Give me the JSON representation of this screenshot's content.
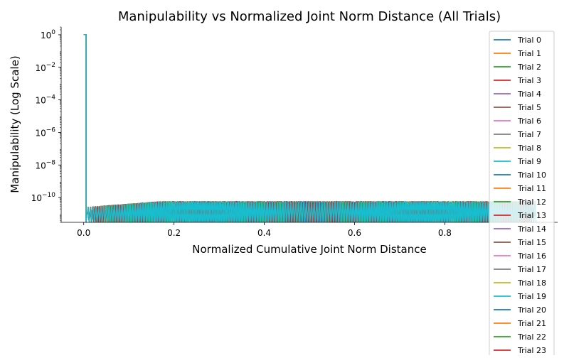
{
  "chart_data": {
    "type": "line",
    "title": "Manipulability vs Normalized Joint Norm Distance (All Trials)",
    "xlabel": "Normalized Cumulative Joint Norm Distance",
    "ylabel": "Manipulability (Log Scale)",
    "xlim": [
      -0.05,
      1.05
    ],
    "ylim": [
      3e-12,
      3
    ],
    "yscale": "log",
    "x_ticks": [
      {
        "value": 0.0,
        "label": "0.0"
      },
      {
        "value": 0.2,
        "label": "0.2"
      },
      {
        "value": 0.4,
        "label": "0.4"
      },
      {
        "value": 0.6,
        "label": "0.6"
      },
      {
        "value": 0.8,
        "label": "0.8"
      }
    ],
    "y_ticks": [
      {
        "value": 1.0,
        "base": "10",
        "exp": "0"
      },
      {
        "value": 0.01,
        "base": "10",
        "exp": "−2"
      },
      {
        "value": 0.0001,
        "base": "10",
        "exp": "−4"
      },
      {
        "value": 1e-06,
        "base": "10",
        "exp": "−6"
      },
      {
        "value": 1e-08,
        "base": "10",
        "exp": "−8"
      },
      {
        "value": 1e-10,
        "base": "10",
        "exp": "−10"
      }
    ],
    "grid": false,
    "legend_position": "right",
    "palette": [
      "#1f77b4",
      "#ff7f0e",
      "#2ca02c",
      "#d62728",
      "#9467bd",
      "#8c564b",
      "#e377c2",
      "#7f7f7f",
      "#bcbd22",
      "#17becf"
    ],
    "series": [
      {
        "name": "Trial 0",
        "color": "#1f77b4"
      },
      {
        "name": "Trial 1",
        "color": "#ff7f0e"
      },
      {
        "name": "Trial 2",
        "color": "#2ca02c"
      },
      {
        "name": "Trial 3",
        "color": "#d62728"
      },
      {
        "name": "Trial 4",
        "color": "#9467bd"
      },
      {
        "name": "Trial 5",
        "color": "#8c564b"
      },
      {
        "name": "Trial 6",
        "color": "#e377c2"
      },
      {
        "name": "Trial 7",
        "color": "#7f7f7f"
      },
      {
        "name": "Trial 8",
        "color": "#bcbd22"
      },
      {
        "name": "Trial 9",
        "color": "#17becf"
      },
      {
        "name": "Trial 10",
        "color": "#1f77b4"
      },
      {
        "name": "Trial 11",
        "color": "#ff7f0e"
      },
      {
        "name": "Trial 12",
        "color": "#2ca02c"
      },
      {
        "name": "Trial 13",
        "color": "#d62728"
      },
      {
        "name": "Trial 14",
        "color": "#9467bd"
      },
      {
        "name": "Trial 15",
        "color": "#8c564b"
      },
      {
        "name": "Trial 16",
        "color": "#e377c2"
      },
      {
        "name": "Trial 17",
        "color": "#7f7f7f"
      },
      {
        "name": "Trial 18",
        "color": "#bcbd22"
      },
      {
        "name": "Trial 19",
        "color": "#17becf"
      },
      {
        "name": "Trial 20",
        "color": "#1f77b4"
      },
      {
        "name": "Trial 21",
        "color": "#ff7f0e"
      },
      {
        "name": "Trial 22",
        "color": "#2ca02c"
      },
      {
        "name": "Trial 23",
        "color": "#d62728"
      }
    ],
    "curve": {
      "initial_value": 1.0,
      "spike_end_x": 0.005,
      "floor_value": 3e-12,
      "peak_start_x": 0.01,
      "peak_start_value": 2.5e-11,
      "plateau_x": 0.17,
      "plateau_value": 5.5e-11,
      "end_x": 1.0
    }
  }
}
